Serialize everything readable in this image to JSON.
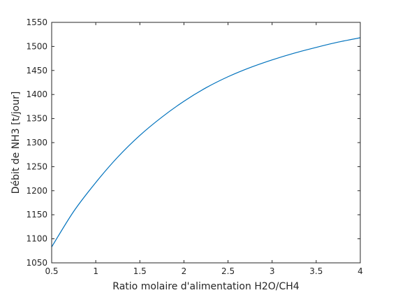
{
  "chart_data": {
    "type": "line",
    "title": "",
    "xlabel": "Ratio molaire d'alimentation H2O/CH4",
    "ylabel": "Débit de NH3 [t/jour]",
    "xlim": [
      0.5,
      4
    ],
    "ylim": [
      1050,
      1550
    ],
    "xticks": [
      0.5,
      1,
      1.5,
      2,
      2.5,
      3,
      3.5,
      4
    ],
    "xtick_labels": [
      "0.5",
      "1",
      "1.5",
      "2",
      "2.5",
      "3",
      "3.5",
      "4"
    ],
    "yticks": [
      1050,
      1100,
      1150,
      1200,
      1250,
      1300,
      1350,
      1400,
      1450,
      1500,
      1550
    ],
    "ytick_labels": [
      "1050",
      "1100",
      "1150",
      "1200",
      "1250",
      "1300",
      "1350",
      "1400",
      "1450",
      "1500",
      "1550"
    ],
    "grid": false,
    "legend": "none",
    "line_color": "#0072bd",
    "series": [
      {
        "x": [
          0.5,
          0.75,
          1.0,
          1.25,
          1.5,
          1.75,
          2.0,
          2.25,
          2.5,
          2.75,
          3.0,
          3.25,
          3.5,
          3.75,
          4.0
        ],
        "y": [
          1083,
          1157,
          1217,
          1270,
          1315,
          1353,
          1386,
          1414,
          1437,
          1456,
          1472,
          1486,
          1498,
          1509,
          1518
        ]
      }
    ]
  }
}
